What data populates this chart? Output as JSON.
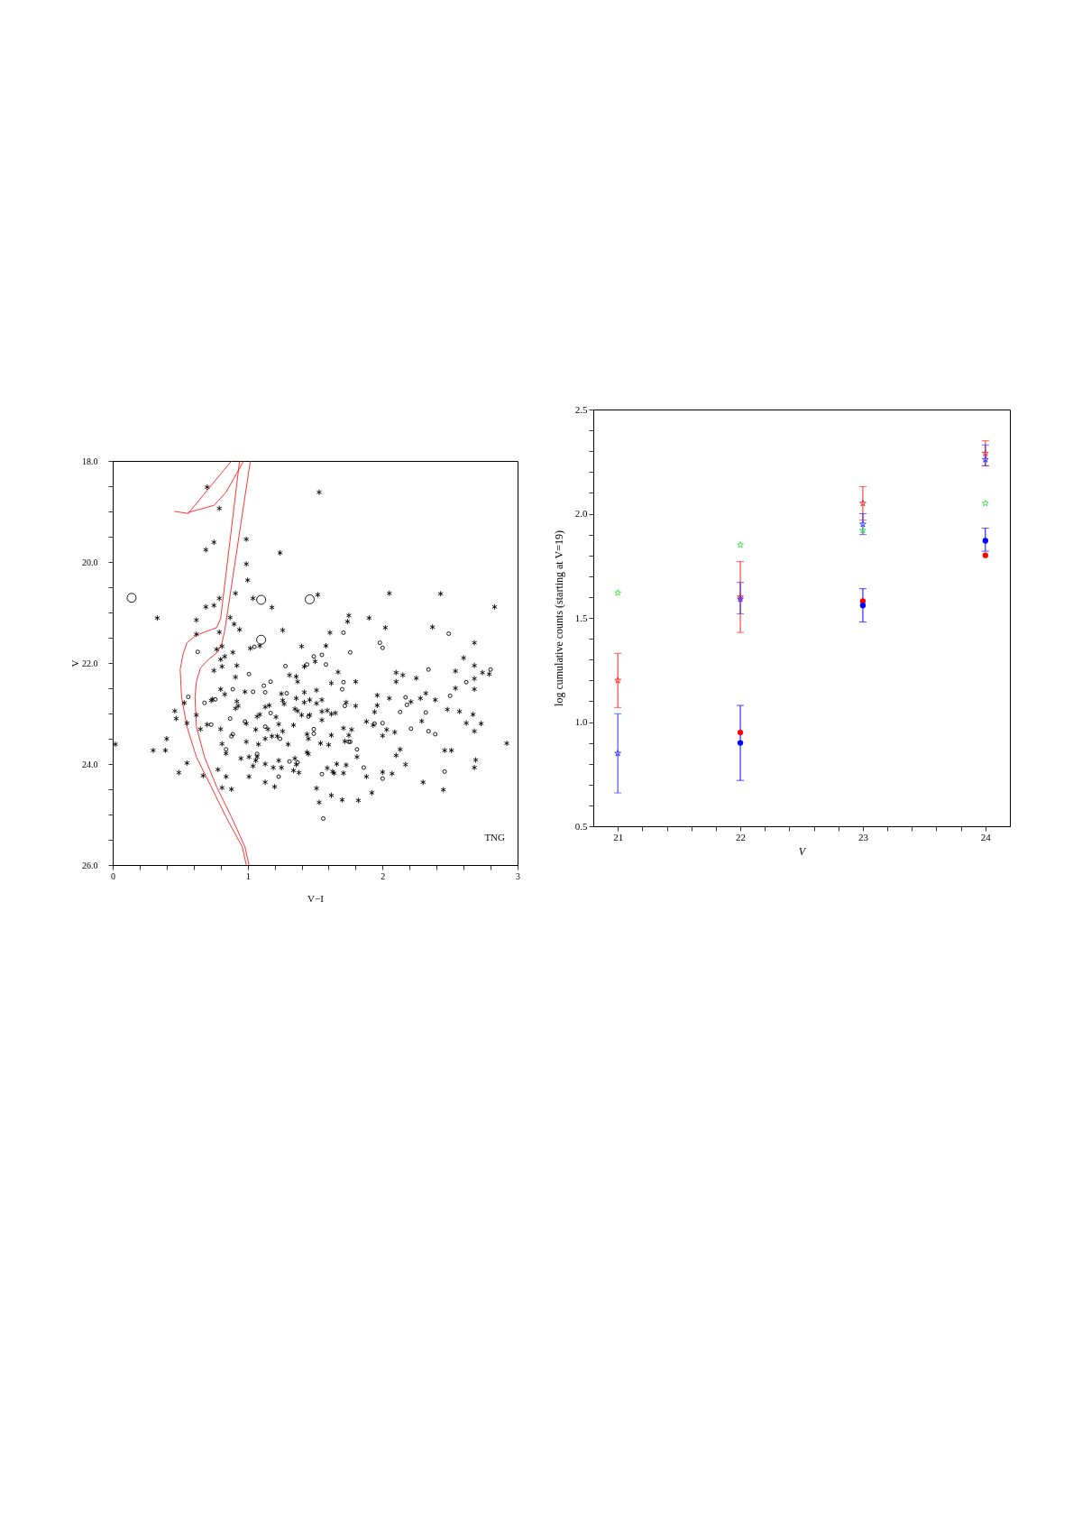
{
  "chart_data": [
    {
      "type": "scatter",
      "xlabel": "V−I",
      "ylabel": "V",
      "xlim": [
        0,
        3
      ],
      "ylim": [
        26,
        18
      ],
      "xticks": [
        0,
        {
          "value": 0.2,
          "label": null
        },
        {
          "value": 0.4,
          "label": null
        },
        {
          "value": 0.6,
          "label": null
        },
        {
          "value": 0.8,
          "label": null
        },
        1,
        {
          "value": 1.2,
          "label": null
        },
        {
          "value": 1.4,
          "label": null
        },
        {
          "value": 1.6,
          "label": null
        },
        {
          "value": 1.8,
          "label": null
        },
        2,
        {
          "value": 2.2,
          "label": null
        },
        {
          "value": 2.4,
          "label": null
        },
        {
          "value": 2.6,
          "label": null
        },
        {
          "value": 2.8,
          "label": null
        },
        3
      ],
      "yticks": [
        {
          "value": 18,
          "label": "18.0"
        },
        {
          "value": 18.5,
          "label": null
        },
        {
          "value": 19,
          "label": null
        },
        {
          "value": 19.5,
          "label": null
        },
        {
          "value": 20,
          "label": "20.0"
        },
        {
          "value": 20.5,
          "label": null
        },
        {
          "value": 21,
          "label": null
        },
        {
          "value": 21.5,
          "label": null
        },
        {
          "value": 22,
          "label": "22.0"
        },
        {
          "value": 22.5,
          "label": null
        },
        {
          "value": 23,
          "label": null
        },
        {
          "value": 23.5,
          "label": null
        },
        {
          "value": 24,
          "label": "24.0"
        },
        {
          "value": 24.5,
          "label": null
        },
        {
          "value": 25,
          "label": null
        },
        {
          "value": 25.5,
          "label": null
        },
        {
          "value": 26,
          "label": "26.0"
        }
      ],
      "annotations": [
        "TNG"
      ],
      "series": [
        {
          "type": "line",
          "color": "#ff0000",
          "line_style": "solid",
          "x": [
            0.94,
            0.8,
            0.77,
            0.71,
            0.62,
            0.55,
            0.52,
            0.5,
            0.51,
            0.55,
            0.62,
            0.73,
            0.84,
            0.96,
            0.99
          ],
          "values": [
            18.0,
            21.12,
            21.3,
            21.36,
            21.45,
            21.6,
            21.84,
            22.13,
            22.67,
            23.26,
            23.86,
            24.45,
            25.05,
            25.64,
            26.0
          ]
        },
        {
          "type": "line",
          "color": "#ff0000",
          "line_style": "solid",
          "x": [
            1.02,
            0.83,
            0.81,
            0.78,
            0.71,
            0.65,
            0.62,
            0.61,
            0.62,
            0.68,
            0.77,
            0.88,
            0.98,
            1.01
          ],
          "values": [
            18.0,
            21.36,
            21.6,
            21.78,
            21.93,
            22.1,
            22.37,
            22.67,
            23.26,
            23.86,
            24.45,
            25.05,
            25.64,
            26.0
          ]
        },
        {
          "type": "line",
          "color": "#ff0000",
          "line_style": "solid",
          "x": [
            0.46,
            0.56,
            0.71,
            0.88
          ],
          "values": [
            19.0,
            19.04,
            18.55,
            18.0
          ]
        },
        {
          "type": "line",
          "color": "#ff0000",
          "line_style": "solid",
          "x": [
            0.56,
            0.75,
            0.84,
            0.97
          ],
          "values": [
            19.02,
            18.88,
            18.62,
            18.0
          ]
        },
        {
          "type": "scatter",
          "marker": "cross",
          "color": "#000000",
          "x": [
            0.7,
            1.53,
            0.79,
            0.99,
            0.75,
            0.69,
            1.24,
            0.99,
            1.0,
            0.91,
            0.79,
            1.04,
            1.52,
            2.05,
            2.43,
            0.69,
            0.75,
            1.18,
            2.83,
            0.33,
            0.62,
            0.87,
            0.9,
            0.94,
            1.75,
            1.74,
            1.9,
            2.02,
            2.37,
            0.62,
            0.79,
            1.26,
            1.61,
            2.68,
            1.02,
            1.09,
            0.81,
            0.77,
            0.89,
            1.4,
            1.58,
            2.6,
            0.8,
            0.83,
            0.92,
            0.75,
            0.81,
            0.91,
            1.31,
            1.36,
            1.42,
            1.5,
            1.67,
            2.1,
            2.15,
            2.25,
            2.54,
            2.68,
            2.74,
            2.79,
            2.68,
            1.8,
            1.62,
            2.1,
            2.68,
            2.54,
            2.48,
            2.57,
            2.67,
            2.62,
            2.73,
            2.68,
            2.92,
            2.46,
            2.51,
            2.69,
            2.68,
            2.3,
            2.45,
            0.46,
            0.47,
            0.55,
            0.53,
            0.4,
            0.39,
            0.3,
            0.02,
            0.55,
            0.49,
            0.67,
            0.62,
            0.65,
            0.7,
            0.73,
            0.74,
            0.8,
            0.83,
            0.98,
            0.8,
            0.81,
            0.92,
            0.93,
            0.91,
            0.84,
            0.95,
            0.78,
            0.84,
            0.81,
            0.88,
            1.01,
            0.99,
            0.99,
            1.01,
            1.04,
            1.07,
            1.06,
            1.37,
            1.07,
            1.09,
            1.13,
            1.16,
            1.21,
            1.06,
            1.15,
            1.13,
            1.08,
            1.18,
            1.22,
            1.23,
            1.26,
            1.3,
            1.25,
            1.26,
            1.27,
            1.35,
            1.37,
            1.4,
            1.46,
            1.34,
            1.42,
            1.36,
            1.42,
            1.46,
            1.51,
            1.55,
            1.51,
            1.55,
            1.55,
            1.59,
            1.62,
            1.65,
            1.44,
            1.45,
            1.44,
            1.45,
            1.54,
            1.6,
            1.62,
            1.71,
            1.77,
            1.75,
            1.72,
            1.73,
            1.8,
            1.23,
            1.25,
            1.19,
            1.13,
            1.13,
            1.2,
            1.35,
            1.36,
            1.34,
            1.38,
            1.51,
            1.53,
            1.59,
            1.63,
            1.64,
            1.66,
            1.62,
            1.7,
            1.71,
            1.73,
            1.82,
            1.81,
            1.88,
            1.92,
            1.88,
            1.93,
            1.94,
            1.96,
            1.96,
            2.0,
            2.03,
            2.09,
            2.05,
            2.13,
            2.1,
            2.21,
            2.28,
            2.32,
            2.39,
            2.29,
            2.17,
            2.0,
            2.07
          ],
          "values": [
            18.52,
            18.62,
            18.94,
            19.55,
            19.61,
            19.76,
            19.82,
            20.04,
            20.36,
            20.62,
            20.72,
            20.72,
            20.65,
            20.62,
            20.63,
            20.89,
            20.86,
            20.9,
            20.89,
            21.11,
            21.15,
            21.1,
            21.23,
            21.34,
            21.06,
            21.18,
            21.11,
            21.3,
            21.29,
            21.43,
            21.39,
            21.35,
            21.4,
            21.6,
            21.71,
            21.66,
            21.67,
            21.73,
            21.79,
            21.67,
            21.66,
            21.9,
            21.93,
            21.87,
            22.05,
            22.15,
            22.07,
            22.28,
            22.24,
            22.27,
            22.07,
            21.97,
            22.18,
            22.19,
            22.24,
            22.3,
            22.16,
            22.05,
            22.19,
            22.22,
            22.31,
            22.37,
            22.4,
            22.37,
            22.52,
            22.5,
            22.92,
            22.96,
            23.02,
            23.19,
            23.2,
            23.35,
            23.59,
            23.73,
            23.73,
            23.92,
            24.07,
            24.36,
            24.51,
            22.95,
            23.1,
            23.19,
            22.79,
            23.5,
            23.73,
            23.73,
            23.61,
            23.98,
            24.17,
            24.23,
            23.03,
            23.31,
            23.22,
            22.74,
            22.72,
            22.52,
            22.62,
            22.57,
            23.31,
            23.6,
            22.76,
            22.85,
            22.9,
            23.79,
            23.89,
            24.11,
            24.25,
            24.47,
            24.5,
            24.25,
            23.56,
            23.2,
            23.86,
            24.04,
            23.86,
            23.93,
            22.37,
            23.06,
            23.02,
            22.87,
            22.84,
            23.07,
            23.32,
            23.31,
            23.5,
            23.61,
            23.45,
            23.45,
            23.21,
            23.35,
            23.61,
            22.61,
            22.74,
            22.81,
            22.91,
            22.95,
            23.03,
            23.03,
            23.23,
            22.58,
            22.7,
            22.78,
            22.73,
            22.8,
            22.73,
            22.54,
            22.96,
            23.13,
            22.94,
            23.01,
            22.99,
            23.41,
            23.5,
            23.77,
            23.8,
            23.59,
            23.62,
            23.43,
            23.29,
            23.32,
            23.43,
            23.55,
            22.78,
            22.85,
            23.93,
            24.07,
            24.07,
            24.0,
            24.36,
            24.45,
            23.89,
            24.01,
            24.13,
            24.17,
            24.48,
            24.76,
            24.08,
            24.15,
            24.18,
            24.0,
            24.62,
            24.71,
            24.18,
            24.02,
            24.72,
            23.86,
            24.25,
            24.57,
            23.16,
            23.23,
            22.97,
            22.84,
            22.64,
            23.44,
            23.32,
            23.37,
            22.7,
            23.71,
            23.83,
            22.77,
            22.7,
            22.6,
            22.73,
            23.15,
            24.01,
            24.16,
            24.19
          ]
        },
        {
          "type": "scatter",
          "marker": "circle",
          "color": "#000000",
          "x": [
            0.63,
            1.05,
            1.71,
            1.76,
            1.98,
            2.0,
            2.49,
            1.49,
            1.55,
            1.44,
            1.58,
            1.28,
            1.01,
            2.34,
            2.8,
            1.17,
            1.71,
            2.62,
            1.12,
            2.5,
            0.56,
            0.73,
            0.68,
            0.76,
            0.89,
            1.04,
            0.84,
            0.87,
            0.88,
            0.89,
            0.98,
            1.07,
            1.13,
            1.17,
            1.13,
            1.24,
            1.29,
            1.45,
            1.49,
            1.49,
            1.75,
            1.76,
            1.72,
            1.7,
            1.23,
            1.31,
            1.37,
            1.55,
            1.56,
            1.81,
            1.86,
            1.94,
            2.0,
            2.17,
            2.18,
            2.13,
            2.21,
            2.32,
            2.34,
            2.39,
            2.0,
            2.46
          ],
          "values": [
            21.78,
            21.68,
            21.4,
            21.79,
            21.6,
            21.7,
            21.42,
            21.87,
            21.84,
            22.03,
            22.03,
            22.06,
            22.22,
            22.13,
            22.13,
            22.37,
            22.38,
            22.38,
            22.45,
            22.65,
            22.67,
            23.22,
            22.79,
            22.72,
            22.52,
            22.57,
            23.71,
            23.1,
            23.45,
            23.41,
            23.16,
            23.8,
            22.58,
            22.99,
            23.26,
            23.5,
            22.6,
            23.06,
            23.31,
            23.4,
            23.56,
            23.56,
            22.85,
            22.52,
            24.25,
            23.95,
            23.97,
            24.2,
            25.08,
            23.71,
            24.07,
            23.2,
            23.19,
            22.68,
            22.83,
            22.97,
            23.3,
            22.98,
            23.35,
            23.41,
            24.29,
            24.15
          ]
        },
        {
          "type": "bubble",
          "marker": "circle",
          "color": "#000000",
          "x": [
            0.14,
            1.1,
            1.46,
            1.1
          ],
          "values": [
            20.71,
            20.75,
            20.74,
            21.54
          ],
          "sizes": [
            1,
            1,
            1,
            1
          ]
        }
      ]
    },
    {
      "type": "scatter",
      "xlabel": "V",
      "ylabel": "log cumulative counts (starting at V=19)",
      "xlim": [
        20.8,
        24.2
      ],
      "ylim": [
        0.5,
        2.5
      ],
      "xticks": [
        21,
        {
          "value": 21.2,
          "label": null
        },
        {
          "value": 21.4,
          "label": null
        },
        {
          "value": 21.6,
          "label": null
        },
        {
          "value": 21.8,
          "label": null
        },
        22,
        {
          "value": 22.2,
          "label": null
        },
        {
          "value": 22.4,
          "label": null
        },
        {
          "value": 22.6,
          "label": null
        },
        {
          "value": 22.8,
          "label": null
        },
        23,
        {
          "value": 23.2,
          "label": null
        },
        {
          "value": 23.4,
          "label": null
        },
        {
          "value": 23.6,
          "label": null
        },
        {
          "value": 23.8,
          "label": null
        },
        24
      ],
      "yticks": [
        0.5,
        {
          "value": 0.6,
          "label": null
        },
        {
          "value": 0.7,
          "label": null
        },
        {
          "value": 0.8,
          "label": null
        },
        {
          "value": 0.9,
          "label": null
        },
        {
          "value": 1,
          "label": "1.0"
        },
        {
          "value": 1.1,
          "label": null
        },
        {
          "value": 1.2,
          "label": null
        },
        {
          "value": 1.3,
          "label": null
        },
        {
          "value": 1.4,
          "label": null
        },
        1.5,
        {
          "value": 1.6,
          "label": null
        },
        {
          "value": 1.7,
          "label": null
        },
        {
          "value": 1.8,
          "label": null
        },
        {
          "value": 1.9,
          "label": null
        },
        {
          "value": 2,
          "label": "2.0"
        },
        {
          "value": 2.1,
          "label": null
        },
        {
          "value": 2.2,
          "label": null
        },
        {
          "value": 2.3,
          "label": null
        },
        {
          "value": 2.4,
          "label": null
        },
        2.5
      ],
      "series": [
        {
          "marker": "star",
          "color": "#ff2020",
          "x": [
            21,
            22,
            23,
            24
          ],
          "values": [
            1.2,
            1.6,
            2.05,
            2.29
          ],
          "errors": [
            0.13,
            0.17,
            [
              1.97,
              2.13
            ],
            [
              2.23,
              2.35
            ]
          ]
        },
        {
          "marker": "star",
          "color": "#3030ff",
          "x": [
            21,
            22,
            23,
            24
          ],
          "values": [
            0.85,
            1.59,
            1.95,
            2.26
          ],
          "errors": [
            [
              0.66,
              1.04
            ],
            [
              1.52,
              1.67
            ],
            [
              1.9,
              2.0
            ],
            [
              2.23,
              2.33
            ]
          ]
        },
        {
          "marker": "star",
          "color": "#30e030",
          "x": [
            21,
            22,
            23,
            24
          ],
          "values": [
            1.62,
            1.85,
            1.92,
            2.05
          ]
        },
        {
          "marker": "circle",
          "color": "#ff0000",
          "x": [
            22,
            23,
            24
          ],
          "values": [
            0.95,
            1.58,
            1.8
          ]
        },
        {
          "marker": "circle",
          "color": "#0000ff",
          "x": [
            22,
            23,
            24
          ],
          "values": [
            0.9,
            1.56,
            1.87
          ],
          "errors": [
            [
              0.72,
              1.08
            ],
            [
              1.48,
              1.64
            ],
            [
              1.82,
              1.93
            ]
          ]
        }
      ]
    }
  ]
}
